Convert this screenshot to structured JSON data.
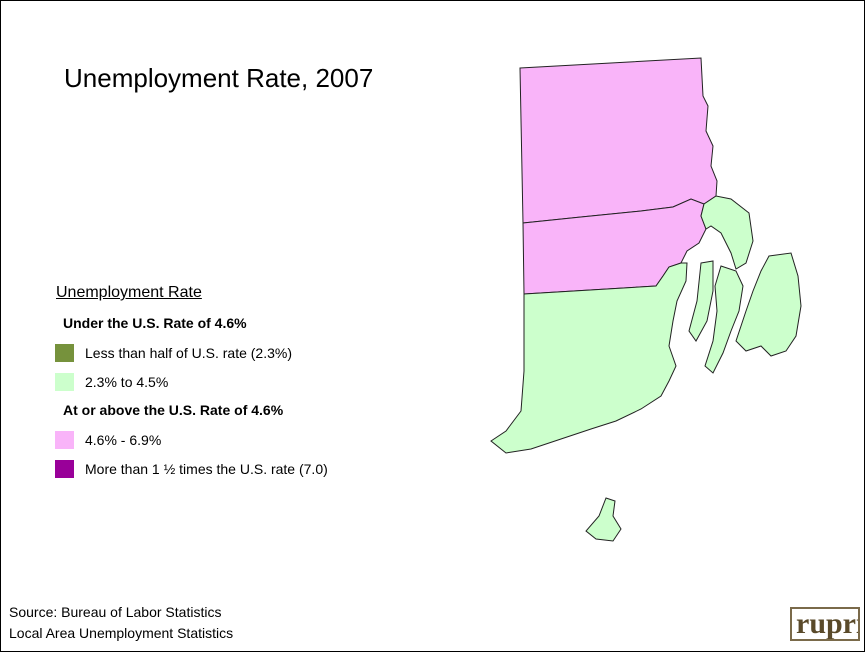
{
  "title": "Unemployment Rate, 2007",
  "legend": {
    "heading": "Unemployment Rate",
    "groups": [
      {
        "label": "Under the U.S. Rate of 4.6%",
        "items": [
          {
            "label": "Less than half of U.S. rate (2.3%)",
            "color": "#76923c"
          },
          {
            "label": "2.3% to 4.5%",
            "color": "#ccffcc"
          }
        ]
      },
      {
        "label": "At or above the U.S. Rate of 4.6%",
        "items": [
          {
            "label": "4.6% - 6.9%",
            "color": "#f9b4f9"
          },
          {
            "label": "More than 1 ½ times the U.S. rate (7.0)",
            "color": "#990099"
          }
        ]
      }
    ]
  },
  "source": [
    "Source: Bureau of Labor Statistics",
    "Local Area Unemployment Statistics"
  ],
  "logo": "rupri"
}
